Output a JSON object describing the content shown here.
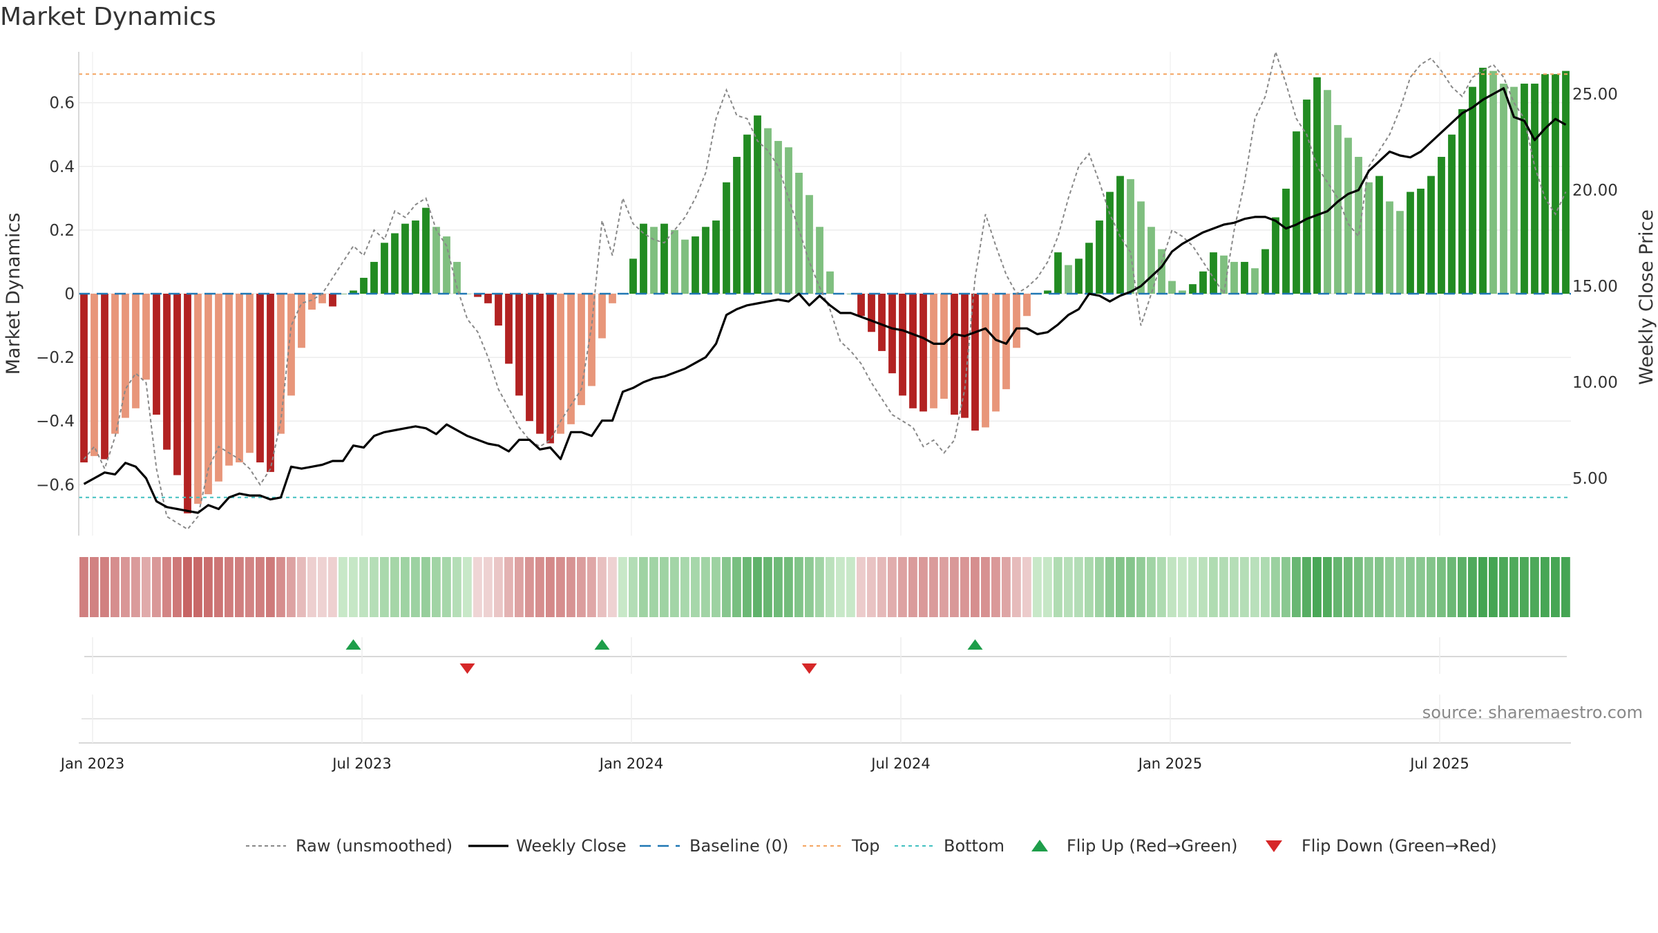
{
  "chart_data": {
    "type": "bar",
    "title": "Market Dynamics",
    "ylabel": "Market Dynamics",
    "y2label": "Weekly Close Price",
    "ylim": [
      -0.76,
      0.76
    ],
    "y2lim": [
      2.0,
      27.0
    ],
    "yticks": [
      0.6,
      0.4,
      0.2,
      0,
      -0.2,
      -0.4,
      -0.6
    ],
    "yticklabels": [
      "0.6",
      "0.4",
      "0.2",
      "0",
      "−0.2",
      "−0.4",
      "−0.6"
    ],
    "y2ticks": [
      25,
      20,
      15,
      10,
      5
    ],
    "y2ticklabels": [
      "25.00",
      "20.00",
      "15.00",
      "10.00",
      "5.00"
    ],
    "xticklabels": [
      "Jan 2023",
      "Jul 2023",
      "Jan 2024",
      "Jul 2024",
      "Jan 2025",
      "Jul 2025"
    ],
    "xticks": [
      0,
      26,
      52,
      78,
      104,
      130
    ],
    "top_level": 0.69,
    "bottom_level": -0.64,
    "grid": true,
    "source": "source: sharemaestro.com",
    "week_count": 144,
    "values": [
      -0.53,
      -0.51,
      -0.52,
      -0.44,
      -0.39,
      -0.36,
      -0.27,
      -0.38,
      -0.49,
      -0.57,
      -0.69,
      -0.66,
      -0.63,
      -0.59,
      -0.54,
      -0.53,
      -0.5,
      -0.53,
      -0.56,
      -0.44,
      -0.32,
      -0.17,
      -0.05,
      -0.03,
      -0.04,
      0.0,
      0.01,
      0.05,
      0.1,
      0.16,
      0.19,
      0.22,
      0.23,
      0.27,
      0.21,
      0.18,
      0.1,
      0.0,
      -0.01,
      -0.03,
      -0.1,
      -0.22,
      -0.32,
      -0.4,
      -0.44,
      -0.47,
      -0.44,
      -0.41,
      -0.35,
      -0.29,
      -0.14,
      -0.03,
      0.0,
      0.11,
      0.22,
      0.21,
      0.22,
      0.2,
      0.17,
      0.18,
      0.21,
      0.23,
      0.35,
      0.43,
      0.5,
      0.56,
      0.52,
      0.48,
      0.46,
      0.38,
      0.31,
      0.21,
      0.07,
      0.0,
      0.0,
      -0.07,
      -0.12,
      -0.18,
      -0.25,
      -0.32,
      -0.36,
      -0.37,
      -0.36,
      -0.33,
      -0.38,
      -0.39,
      -0.43,
      -0.42,
      -0.37,
      -0.3,
      -0.17,
      -0.07,
      0.0,
      0.01,
      0.13,
      0.09,
      0.11,
      0.16,
      0.23,
      0.32,
      0.37,
      0.36,
      0.29,
      0.21,
      0.14,
      0.04,
      0.01,
      0.03,
      0.07,
      0.13,
      0.12,
      0.1,
      0.1,
      0.08,
      0.14,
      0.24,
      0.33,
      0.51,
      0.61,
      0.68,
      0.64,
      0.53,
      0.49,
      0.43,
      0.35,
      0.37,
      0.29,
      0.26,
      0.32,
      0.33,
      0.37,
      0.43,
      0.5,
      0.58,
      0.65,
      0.71,
      0.7,
      0.66,
      0.65,
      0.66,
      0.66,
      0.69,
      0.69,
      0.7
    ],
    "raw_values": [
      -0.52,
      -0.48,
      -0.55,
      -0.45,
      -0.3,
      -0.25,
      -0.28,
      -0.55,
      -0.7,
      -0.72,
      -0.74,
      -0.7,
      -0.55,
      -0.48,
      -0.5,
      -0.52,
      -0.55,
      -0.6,
      -0.55,
      -0.4,
      -0.1,
      -0.03,
      -0.02,
      0.0,
      0.05,
      0.1,
      0.15,
      0.12,
      0.2,
      0.17,
      0.26,
      0.24,
      0.28,
      0.3,
      0.2,
      0.15,
      0.02,
      -0.08,
      -0.12,
      -0.2,
      -0.3,
      -0.36,
      -0.42,
      -0.46,
      -0.48,
      -0.46,
      -0.4,
      -0.35,
      -0.3,
      -0.1,
      0.23,
      0.12,
      0.3,
      0.22,
      0.19,
      0.17,
      0.16,
      0.2,
      0.24,
      0.3,
      0.38,
      0.55,
      0.64,
      0.56,
      0.55,
      0.48,
      0.45,
      0.4,
      0.3,
      0.2,
      0.1,
      0.02,
      -0.05,
      -0.15,
      -0.18,
      -0.22,
      -0.28,
      -0.33,
      -0.38,
      -0.4,
      -0.42,
      -0.48,
      -0.46,
      -0.5,
      -0.46,
      -0.3,
      0.05,
      0.25,
      0.15,
      0.06,
      0.0,
      0.02,
      0.05,
      0.1,
      0.18,
      0.3,
      0.4,
      0.44,
      0.35,
      0.25,
      0.18,
      0.13,
      -0.1,
      0.0,
      0.1,
      0.2,
      0.18,
      0.15,
      0.1,
      0.05,
      0.0,
      0.2,
      0.35,
      0.55,
      0.62,
      0.76,
      0.66,
      0.55,
      0.5,
      0.4,
      0.35,
      0.3,
      0.22,
      0.18,
      0.4,
      0.45,
      0.5,
      0.58,
      0.68,
      0.72,
      0.74,
      0.7,
      0.65,
      0.62,
      0.68,
      0.7,
      0.72,
      0.68,
      0.6,
      0.55,
      0.4,
      0.3,
      0.25,
      0.32
    ],
    "close_values": [
      4.7,
      5.0,
      5.3,
      5.2,
      5.8,
      5.6,
      5.0,
      3.8,
      3.5,
      3.4,
      3.3,
      3.2,
      3.6,
      3.4,
      4.0,
      4.2,
      4.1,
      4.1,
      3.9,
      4.0,
      5.6,
      5.5,
      5.6,
      5.7,
      5.9,
      5.9,
      6.7,
      6.6,
      7.2,
      7.4,
      7.5,
      7.6,
      7.7,
      7.6,
      7.3,
      7.8,
      7.5,
      7.2,
      7.0,
      6.8,
      6.7,
      6.4,
      7.0,
      7.0,
      6.5,
      6.6,
      6.0,
      7.4,
      7.4,
      7.2,
      8.0,
      8.0,
      9.5,
      9.7,
      10.0,
      10.2,
      10.3,
      10.5,
      10.7,
      11.0,
      11.3,
      12.0,
      13.5,
      13.8,
      14.0,
      14.1,
      14.2,
      14.3,
      14.2,
      14.6,
      14.0,
      14.5,
      14.0,
      13.6,
      13.6,
      13.4,
      13.2,
      13.0,
      12.8,
      12.7,
      12.5,
      12.3,
      12.0,
      12.0,
      12.5,
      12.4,
      12.6,
      12.8,
      12.2,
      12.0,
      12.8,
      12.8,
      12.5,
      12.6,
      13.0,
      13.5,
      13.8,
      14.6,
      14.5,
      14.2,
      14.5,
      14.7,
      15.0,
      15.5,
      16.0,
      16.8,
      17.2,
      17.5,
      17.8,
      18.0,
      18.2,
      18.3,
      18.5,
      18.6,
      18.6,
      18.4,
      18.0,
      18.2,
      18.5,
      18.7,
      18.9,
      19.4,
      19.8,
      20.0,
      21.0,
      21.5,
      22.0,
      21.8,
      21.7,
      22.0,
      22.5,
      23.0,
      23.5,
      24.0,
      24.3,
      24.7,
      25.0,
      25.3,
      23.8,
      23.6,
      22.6,
      23.2,
      23.7,
      23.4
    ]
  },
  "legend": {
    "raw": "Raw (unsmoothed)",
    "close": "Weekly Close",
    "baseline": "Baseline (0)",
    "top": "Top",
    "bottom": "Bottom",
    "flip_up": "Flip Up (Red→Green)",
    "flip_down": "Flip Down (Green→Red)"
  },
  "flips": {
    "up_weeks": [
      26,
      50,
      86
    ],
    "down_weeks": [
      37,
      70
    ]
  },
  "colors": {
    "strong_green": "#228b22",
    "light_green": "#7fbf7f",
    "strong_red": "#b22222",
    "light_red": "#e8967a",
    "top_line": "#f4a460",
    "bottom_line": "#40c0c0",
    "baseline": "#1f77b4",
    "close_line": "#000000",
    "raw_line": "#888888",
    "flip_up": "#1e9e4a",
    "flip_down": "#d62728"
  }
}
